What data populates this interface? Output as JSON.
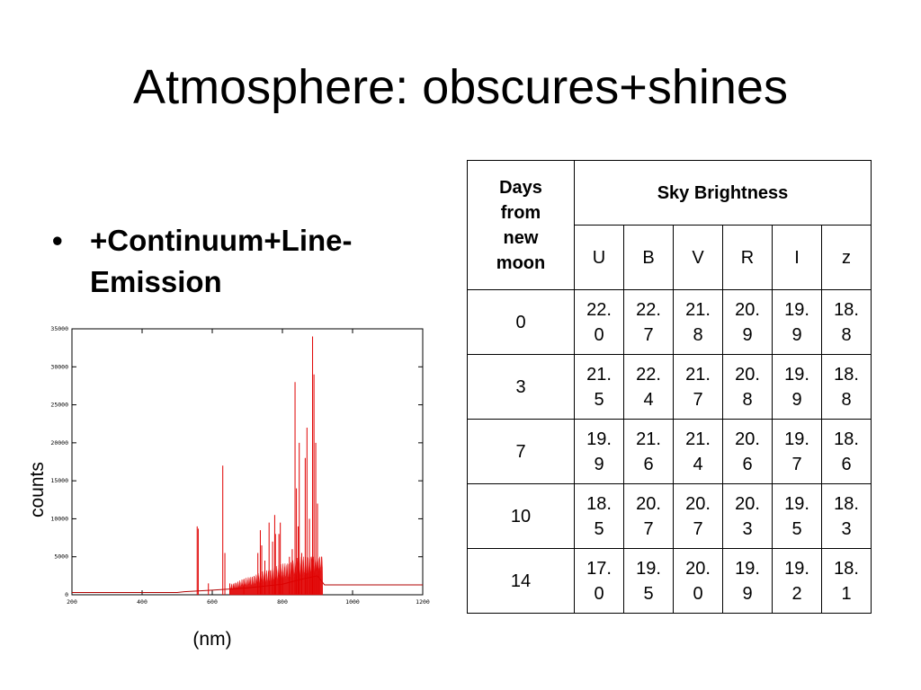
{
  "slide": {
    "title": "Atmosphere: obscures+shines",
    "bullet": "+Continuum+Line-Emission",
    "bullet_marker": "•"
  },
  "chart_data": {
    "type": "line",
    "xlabel": "(nm)",
    "ylabel": "counts",
    "xlim": [
      200,
      1200
    ],
    "ylim": [
      0,
      35000
    ],
    "xticks": [
      "200",
      "400",
      "600",
      "800",
      "1000",
      "1200"
    ],
    "yticks": [
      "0",
      "5000",
      "10000",
      "15000",
      "20000",
      "25000",
      "30000",
      "35000"
    ],
    "grid": false,
    "line_color": "#e00000",
    "continuum": [
      [
        200,
        300
      ],
      [
        500,
        300
      ],
      [
        520,
        400
      ],
      [
        600,
        600
      ],
      [
        700,
        900
      ],
      [
        800,
        1400
      ],
      [
        850,
        2000
      ],
      [
        900,
        2500
      ],
      [
        920,
        1300
      ],
      [
        1200,
        1300
      ]
    ],
    "lines": [
      [
        557,
        9000
      ],
      [
        560,
        8700
      ],
      [
        589,
        1500
      ],
      [
        630,
        17000
      ],
      [
        636,
        5500
      ],
      [
        650,
        1500
      ],
      [
        690,
        2000
      ],
      [
        730,
        5500
      ],
      [
        737,
        8500
      ],
      [
        741,
        6500
      ],
      [
        750,
        4500
      ],
      [
        762,
        9500
      ],
      [
        772,
        7000
      ],
      [
        778,
        10500
      ],
      [
        780,
        8000
      ],
      [
        790,
        8000
      ],
      [
        794,
        9500
      ],
      [
        800,
        3000
      ],
      [
        820,
        5000
      ],
      [
        828,
        6000
      ],
      [
        836,
        28000
      ],
      [
        840,
        14000
      ],
      [
        845,
        9000
      ],
      [
        848,
        20000
      ],
      [
        855,
        5500
      ],
      [
        865,
        18000
      ],
      [
        870,
        22000
      ],
      [
        877,
        10000
      ],
      [
        882,
        5000
      ],
      [
        886,
        34000
      ],
      [
        890,
        29000
      ],
      [
        895,
        20000
      ],
      [
        900,
        12000
      ],
      [
        905,
        3500
      ]
    ]
  },
  "table": {
    "header_col": "Days from new moon",
    "group_header": "Sky Brightness",
    "bands": [
      "U",
      "B",
      "V",
      "R",
      "I",
      "z"
    ],
    "rows": [
      {
        "days": "0",
        "values": [
          "22.0",
          "22.7",
          "21.8",
          "20.9",
          "19.9",
          "18.8"
        ]
      },
      {
        "days": "3",
        "values": [
          "21.5",
          "22.4",
          "21.7",
          "20.8",
          "19.9",
          "18.8"
        ]
      },
      {
        "days": "7",
        "values": [
          "19.9",
          "21.6",
          "21.4",
          "20.6",
          "19.7",
          "18.6"
        ]
      },
      {
        "days": "10",
        "values": [
          "18.5",
          "20.7",
          "20.7",
          "20.3",
          "19.5",
          "18.3"
        ]
      },
      {
        "days": "14",
        "values": [
          "17.0",
          "19.5",
          "20.0",
          "19.9",
          "19.2",
          "18.1"
        ]
      }
    ]
  }
}
